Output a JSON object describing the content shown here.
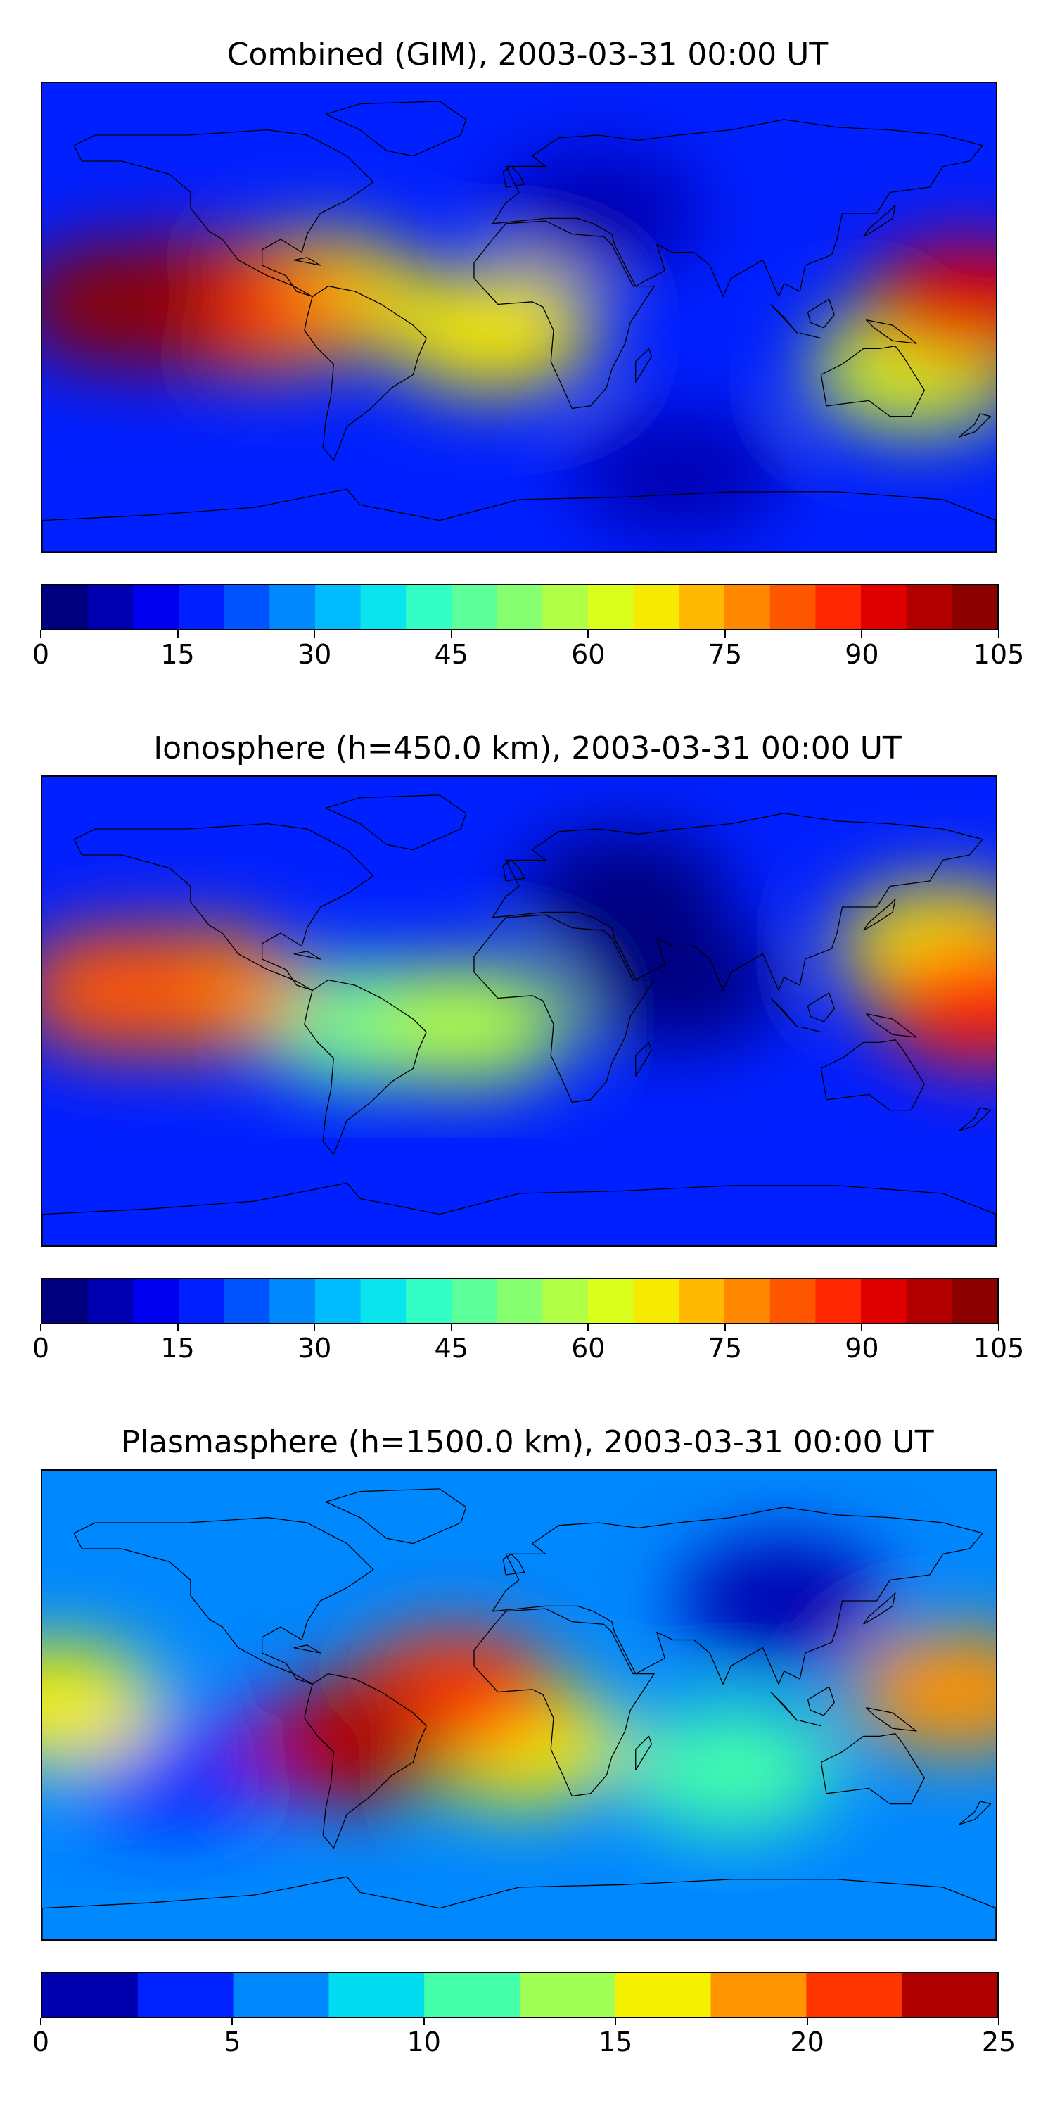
{
  "panels": [
    {
      "title": "Combined (GIM), 2003-03-31 00:00 UT",
      "colorbar": {
        "min": 0,
        "max": 105,
        "step": 5,
        "tick_labels": [
          "0",
          "15",
          "30",
          "45",
          "60",
          "75",
          "90",
          "105"
        ],
        "tick_values": [
          0,
          15,
          30,
          45,
          60,
          75,
          90,
          105
        ]
      },
      "features": [
        {
          "lon": -150,
          "lat": 5,
          "value": 100
        },
        {
          "lon": -120,
          "lat": 5,
          "value": 88
        },
        {
          "lon": -95,
          "lat": 3,
          "value": 78
        },
        {
          "lon": -75,
          "lat": 8,
          "value": 65
        },
        {
          "lon": -10,
          "lat": -5,
          "value": 65
        },
        {
          "lon": 170,
          "lat": 5,
          "value": 90
        },
        {
          "lon": 150,
          "lat": -20,
          "value": 60
        },
        {
          "lon": 30,
          "lat": 40,
          "value": 5
        },
        {
          "lon": 60,
          "lat": -60,
          "value": 5
        }
      ]
    },
    {
      "title": "Ionosphere  (h=450.0 km), 2003-03-31 00:00 UT",
      "colorbar": {
        "min": 0,
        "max": 105,
        "step": 5,
        "tick_labels": [
          "0",
          "15",
          "30",
          "45",
          "60",
          "75",
          "90",
          "105"
        ],
        "tick_values": [
          0,
          15,
          30,
          45,
          60,
          75,
          90,
          105
        ]
      },
      "features": [
        {
          "lon": -150,
          "lat": 8,
          "value": 82
        },
        {
          "lon": -120,
          "lat": 8,
          "value": 75
        },
        {
          "lon": -60,
          "lat": -5,
          "value": 45
        },
        {
          "lon": -20,
          "lat": -5,
          "value": 55
        },
        {
          "lon": 175,
          "lat": 3,
          "value": 85
        },
        {
          "lon": 160,
          "lat": 25,
          "value": 65
        },
        {
          "lon": 60,
          "lat": 10,
          "value": 2
        },
        {
          "lon": 40,
          "lat": 45,
          "value": 3
        }
      ]
    },
    {
      "title": "Plasmasphere (h=1500.0 km), 2003-03-31 00:00 UT",
      "colorbar": {
        "min": 0,
        "max": 25,
        "step": 2.5,
        "tick_labels": [
          "0",
          "5",
          "10",
          "15",
          "20",
          "25"
        ],
        "tick_values": [
          0,
          5,
          10,
          15,
          20,
          25
        ]
      },
      "features": [
        {
          "lon": -65,
          "lat": -15,
          "value": 25
        },
        {
          "lon": -25,
          "lat": 5,
          "value": 20
        },
        {
          "lon": 165,
          "lat": 5,
          "value": 19
        },
        {
          "lon": -175,
          "lat": 0,
          "value": 17
        },
        {
          "lon": 0,
          "lat": -15,
          "value": 15
        },
        {
          "lon": 80,
          "lat": -25,
          "value": 12
        },
        {
          "lon": -130,
          "lat": -25,
          "value": 3
        },
        {
          "lon": 100,
          "lat": 40,
          "value": 2
        }
      ]
    }
  ],
  "colormap": [
    "#00007f",
    "#0000b2",
    "#0000f0",
    "#0020ff",
    "#0054ff",
    "#0088ff",
    "#00bcff",
    "#0ae4ef",
    "#33ffc4",
    "#5cff9a",
    "#86ff70",
    "#b0ff46",
    "#daff1c",
    "#f5ea00",
    "#ffb900",
    "#ff8800",
    "#ff5700",
    "#ff2600",
    "#e00000",
    "#b20000",
    "#8c0000"
  ],
  "plasma_colormap": [
    "#0000b0",
    "#0022ff",
    "#0088ff",
    "#00ddf0",
    "#44ffaa",
    "#a0ff55",
    "#f5ef00",
    "#ff9300",
    "#ff3500",
    "#b00000"
  ]
}
